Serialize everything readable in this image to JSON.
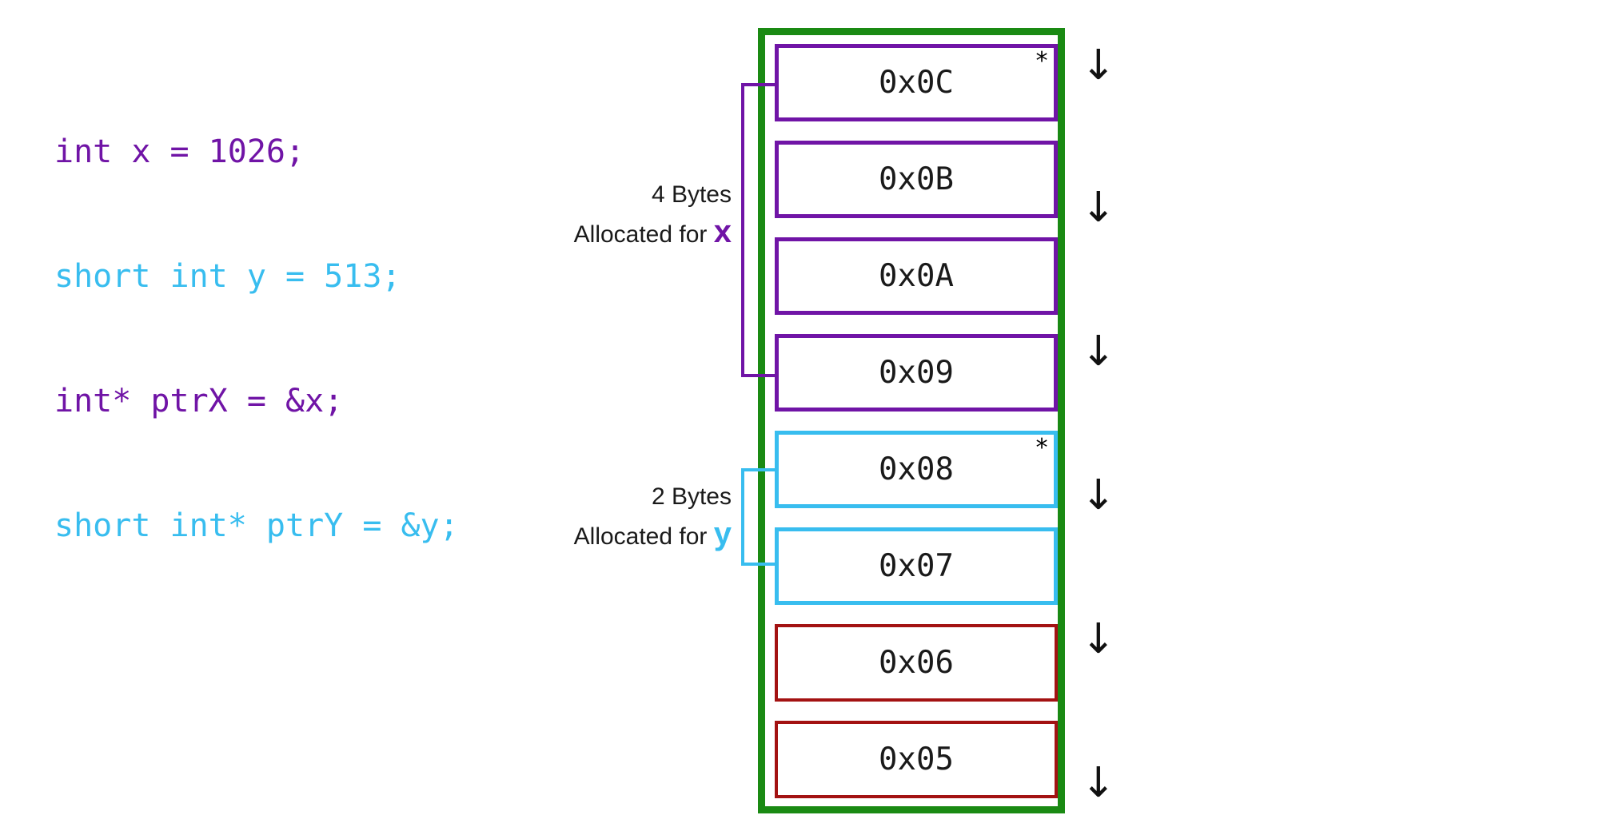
{
  "code": {
    "lines": [
      "int x = 1026;",
      "short int y = 513;",
      "int* ptrX = &x;",
      "short int* ptrY = &y;"
    ],
    "line_colors": [
      "#7014a6",
      "#38bdef",
      "#7014a6",
      "#38bdef"
    ]
  },
  "memory": {
    "cells": [
      {
        "address": "0x0C",
        "owner": "x",
        "marker": "*"
      },
      {
        "address": "0x0B",
        "owner": "x",
        "marker": ""
      },
      {
        "address": "0x0A",
        "owner": "x",
        "marker": ""
      },
      {
        "address": "0x09",
        "owner": "x",
        "marker": ""
      },
      {
        "address": "0x08",
        "owner": "y",
        "marker": "*"
      },
      {
        "address": "0x07",
        "owner": "y",
        "marker": ""
      },
      {
        "address": "0x06",
        "owner": "none",
        "marker": ""
      },
      {
        "address": "0x05",
        "owner": "none",
        "marker": ""
      }
    ],
    "arrow_glyph": "↓"
  },
  "allocations": {
    "x": {
      "size_text": "4 Bytes",
      "prefix": "Allocated for",
      "var": "x"
    },
    "y": {
      "size_text": "2 Bytes",
      "prefix": "Allocated for",
      "var": "y"
    }
  },
  "colors": {
    "x": "#7014a6",
    "y": "#38bdef",
    "free": "#a31212",
    "stack_border": "#1a8a13"
  }
}
